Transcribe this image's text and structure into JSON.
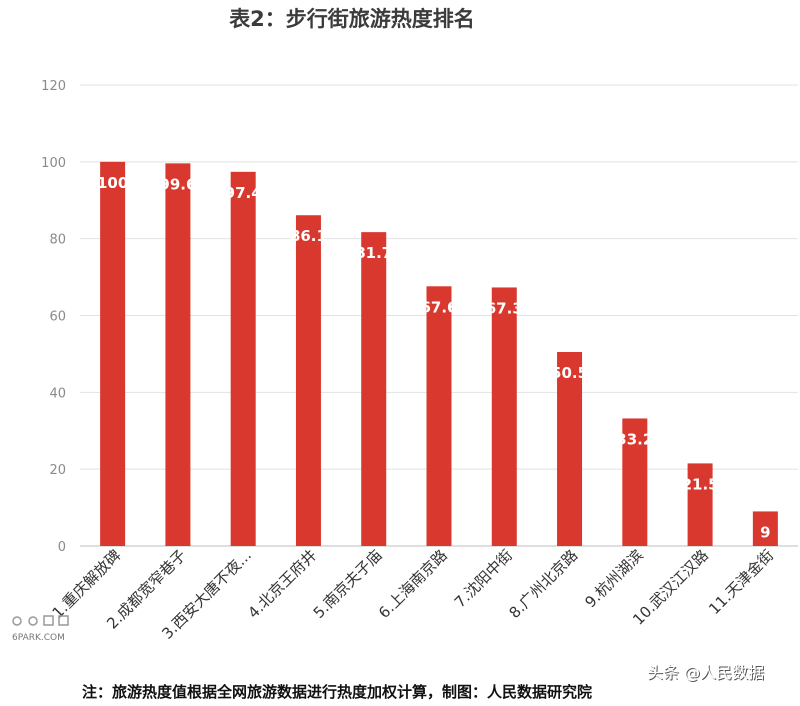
{
  "chart_data": {
    "type": "bar",
    "title": "表2：步行街旅游热度排名",
    "categories": [
      "1.重庆解放碑",
      "2.成都宽窄巷子",
      "3.西安大唐不夜...",
      "4.北京王府井",
      "5.南京夫子庙",
      "6.上海南京路",
      "7.沈阳中街",
      "8.广州北京路",
      "9.杭州湖滨",
      "10.武汉江汉路",
      "11.天津金街"
    ],
    "values": [
      100,
      99.6,
      97.4,
      86.1,
      81.7,
      67.6,
      67.3,
      50.5,
      33.2,
      21.5,
      9
    ],
    "value_labels": [
      "100",
      "99.6",
      "97.4",
      "86.1",
      "81.7",
      "67.6",
      "67.3",
      "50.5",
      "33.2",
      "21.5",
      "9"
    ],
    "ylim": [
      0,
      120
    ],
    "yticks": [
      0,
      20,
      40,
      60,
      80,
      100,
      120
    ],
    "xlabel": "",
    "ylabel": "",
    "grid": true,
    "bar_color": "#d9382f"
  },
  "footnote": "注：旅游热度值根据全网旅游数据进行热度加权计算，制图：人民数据研究院",
  "watermark": "头条 @人民数据",
  "site_logo": {
    "text": "6PARK.COM"
  }
}
